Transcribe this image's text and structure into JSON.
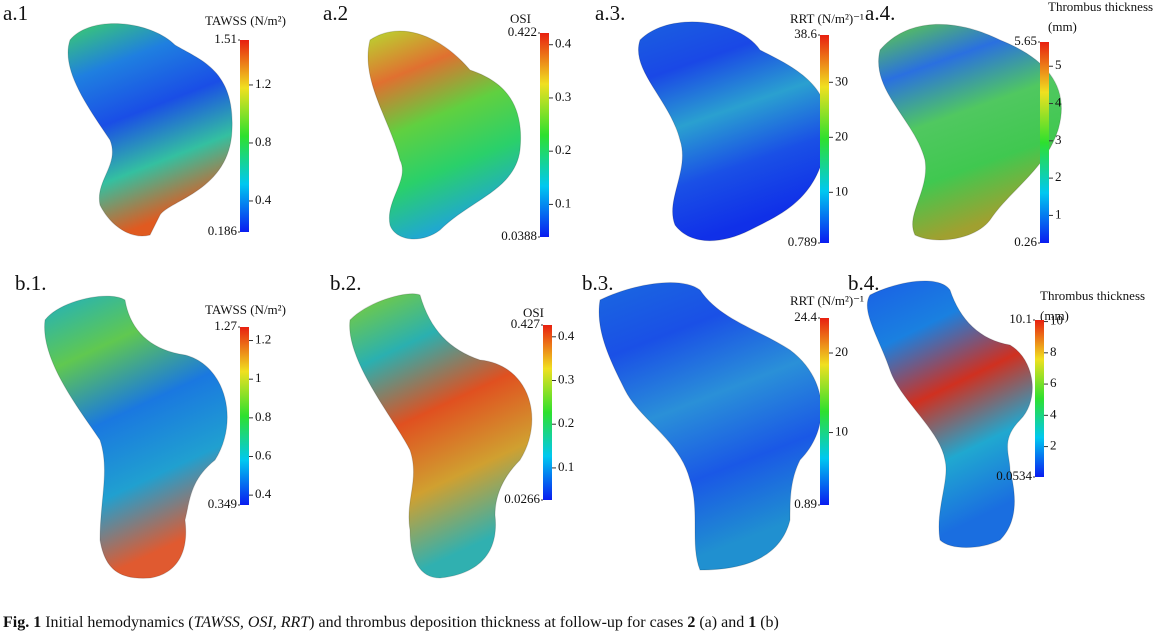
{
  "panels": [
    {
      "label": "a.1",
      "title_lines": [
        "TAWSS (N/m²)"
      ],
      "max": 1.51,
      "min": 0.186,
      "ticks": [
        0.4,
        0.8,
        1.2
      ]
    },
    {
      "label": "a.2",
      "title_lines": [
        "OSI"
      ],
      "max": 0.422,
      "min": 0.0388,
      "ticks": [
        0.1,
        0.2,
        0.3,
        0.4
      ]
    },
    {
      "label": "a.3.",
      "title_lines": [
        "RRT (N/m²)⁻¹"
      ],
      "max": 38.6,
      "min": 0.789,
      "ticks": [
        10,
        20,
        30
      ]
    },
    {
      "label": "a.4.",
      "title_lines": [
        "Thrombus thickness",
        "(mm)"
      ],
      "max": 5.65,
      "min": 0.26,
      "ticks": [
        1,
        2,
        3,
        4,
        5
      ]
    },
    {
      "label": "b.1.",
      "title_lines": [
        "TAWSS (N/m²)"
      ],
      "max": 1.27,
      "min": 0.349,
      "ticks": [
        0.4,
        0.6,
        0.8,
        1,
        1.2
      ]
    },
    {
      "label": "b.2.",
      "title_lines": [
        "OSI"
      ],
      "max": 0.427,
      "min": 0.0266,
      "ticks": [
        0.1,
        0.2,
        0.3,
        0.4
      ]
    },
    {
      "label": "b.3.",
      "title_lines": [
        "RRT (N/m²)⁻¹"
      ],
      "max": 24.4,
      "min": 0.89,
      "ticks": [
        10,
        20
      ]
    },
    {
      "label": "b.4.",
      "title_lines": [
        "Thrombus thickness",
        "(mm)"
      ],
      "max": 10.1,
      "min": 0.0534,
      "ticks": [
        2,
        4,
        6,
        8,
        10
      ]
    }
  ],
  "caption": {
    "label": "Fig. 1",
    "parts": [
      "Initial hemodynamics (",
      "TAWSS, OSI, RRT",
      ") and thrombus deposition thickness at follow-up for cases ",
      "2",
      " (a) and ",
      "1",
      " (b)"
    ]
  }
}
